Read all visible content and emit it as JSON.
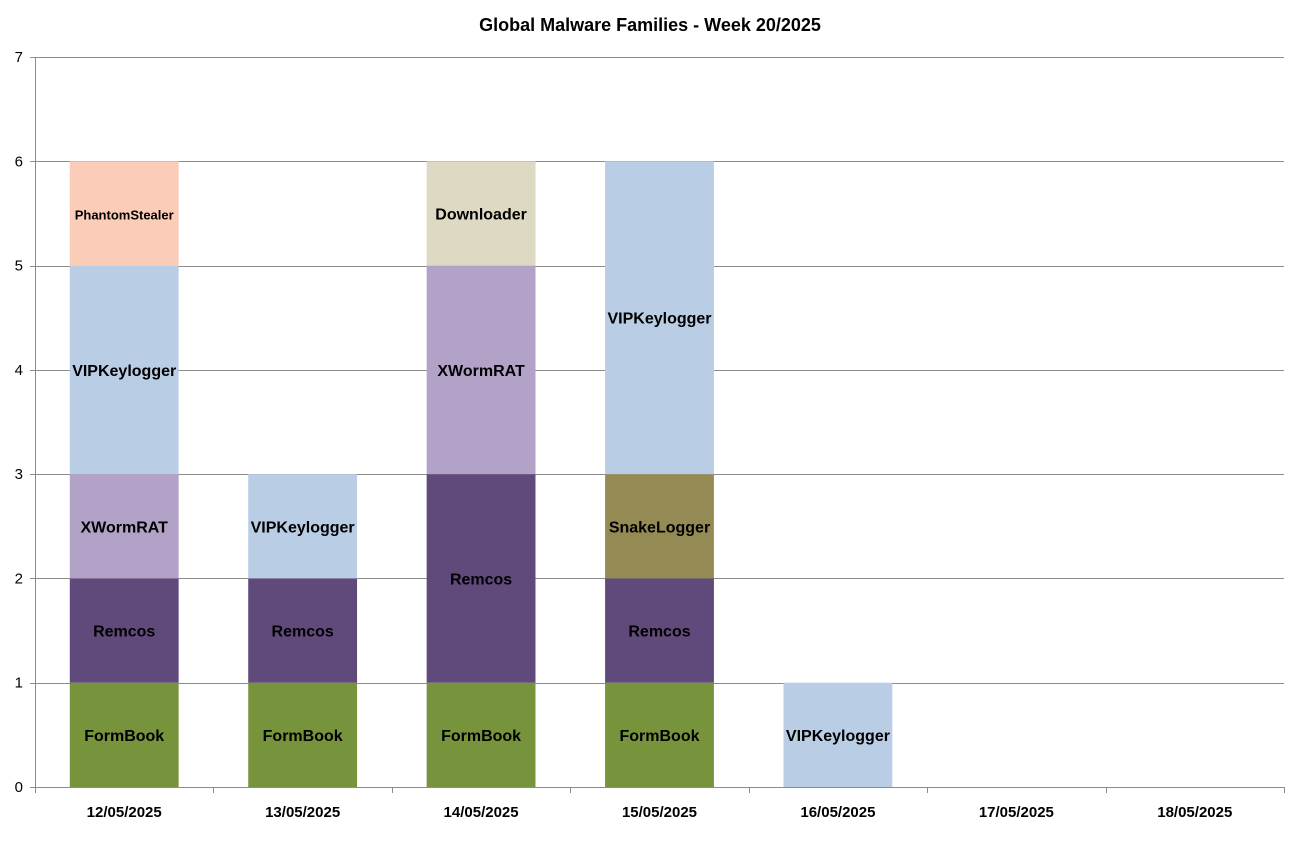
{
  "chart_data": {
    "type": "bar",
    "stacked": true,
    "title": "Global Malware Families - Week 20/2025",
    "xlabel": "",
    "ylabel": "",
    "ylim": [
      0,
      7
    ],
    "yticks": [
      0,
      1,
      2,
      3,
      4,
      5,
      6,
      7
    ],
    "grid": true,
    "categories": [
      "12/05/2025",
      "13/05/2025",
      "14/05/2025",
      "15/05/2025",
      "16/05/2025",
      "17/05/2025",
      "18/05/2025"
    ],
    "family_colors": {
      "FormBook": "#77933c",
      "Remcos": "#604a7b",
      "XWormRAT": "#b3a2c7",
      "VIPKeylogger": "#b9cde5",
      "PhantomStealer": "#fbcdb9",
      "Downloader": "#ddd9c3",
      "SnakeLogger": "#948a54"
    },
    "stacks": [
      [
        {
          "family": "FormBook",
          "value": 1
        },
        {
          "family": "Remcos",
          "value": 1
        },
        {
          "family": "XWormRAT",
          "value": 1
        },
        {
          "family": "VIPKeylogger",
          "value": 2
        },
        {
          "family": "PhantomStealer",
          "value": 1
        }
      ],
      [
        {
          "family": "FormBook",
          "value": 1
        },
        {
          "family": "Remcos",
          "value": 1
        },
        {
          "family": "VIPKeylogger",
          "value": 1
        }
      ],
      [
        {
          "family": "FormBook",
          "value": 1
        },
        {
          "family": "Remcos",
          "value": 2
        },
        {
          "family": "XWormRAT",
          "value": 2
        },
        {
          "family": "Downloader",
          "value": 1
        }
      ],
      [
        {
          "family": "FormBook",
          "value": 1
        },
        {
          "family": "Remcos",
          "value": 1
        },
        {
          "family": "SnakeLogger",
          "value": 1
        },
        {
          "family": "VIPKeylogger",
          "value": 3
        }
      ],
      [
        {
          "family": "VIPKeylogger",
          "value": 1
        }
      ],
      [],
      []
    ]
  }
}
